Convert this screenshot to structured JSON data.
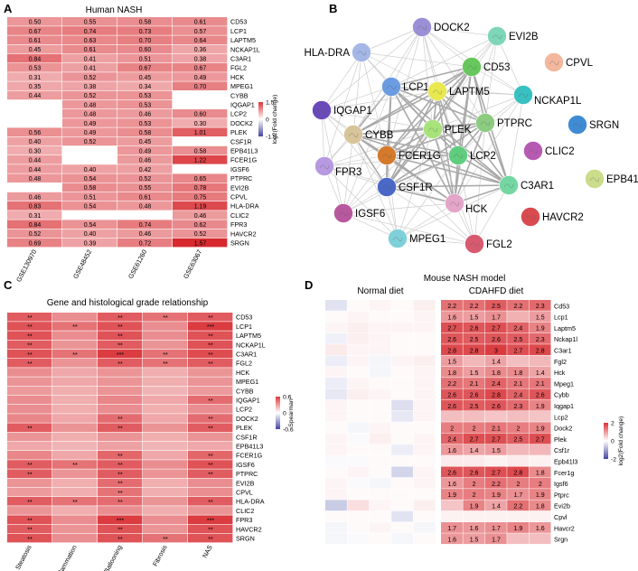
{
  "chart_data": [
    {
      "panel": "A",
      "type": "heatmap",
      "title": "Human NASH",
      "columns": [
        "GSE130970",
        "GSE48452",
        "GSE61260",
        "GSE63067"
      ],
      "rows": [
        "CD53",
        "LCP1",
        "LAPTM5",
        "NCKAP1L",
        "C3AR1",
        "FGL2",
        "HCK",
        "MPEG1",
        "CYBB",
        "IQGAP1",
        "LCP2",
        "DOCK2",
        "PLEK",
        "CSF1R",
        "EPB41L3",
        "FCER1G",
        "IGSF6",
        "PTPRC",
        "EVI2B",
        "CPVL",
        "HLA-DRA",
        "CLIC2",
        "FPR3",
        "HAVCR2",
        "SRGN"
      ],
      "values": [
        [
          0.5,
          0.55,
          0.58,
          0.61
        ],
        [
          0.67,
          0.74,
          0.73,
          0.57
        ],
        [
          0.61,
          0.63,
          0.7,
          0.64
        ],
        [
          0.45,
          0.61,
          0.6,
          0.36
        ],
        [
          0.84,
          0.41,
          0.51,
          0.38
        ],
        [
          0.53,
          0.41,
          0.67,
          0.67
        ],
        [
          0.31,
          0.52,
          0.45,
          0.49
        ],
        [
          0.35,
          0.38,
          0.34,
          0.7
        ],
        [
          0.44,
          0.52,
          0.53,
          null
        ],
        [
          null,
          0.48,
          0.53,
          null
        ],
        [
          null,
          0.48,
          0.46,
          0.6
        ],
        [
          null,
          0.49,
          0.53,
          0.3
        ],
        [
          0.56,
          0.49,
          0.58,
          1.01
        ],
        [
          0.4,
          0.52,
          0.45,
          null
        ],
        [
          0.3,
          null,
          0.49,
          0.58
        ],
        [
          0.44,
          null,
          0.46,
          1.22
        ],
        [
          0.44,
          0.4,
          0.42,
          null
        ],
        [
          0.48,
          0.54,
          0.52,
          0.65
        ],
        [
          null,
          0.58,
          0.55,
          0.78
        ],
        [
          0.46,
          0.51,
          0.61,
          0.75
        ],
        [
          0.83,
          0.54,
          0.48,
          1.19
        ],
        [
          0.31,
          null,
          null,
          0.46
        ],
        [
          0.84,
          0.54,
          0.74,
          0.62
        ],
        [
          0.52,
          0.4,
          0.46,
          0.52
        ],
        [
          0.69,
          0.39,
          0.72,
          1.57
        ]
      ],
      "colorbar": {
        "label": "log2(Fold change)",
        "ticks": [
          "1.5",
          "0",
          "-1.5"
        ],
        "range": [
          -1.5,
          1.5
        ]
      }
    },
    {
      "panel": "B",
      "type": "network",
      "nodes": [
        "DOCK2",
        "EVI2B",
        "HLA-DRA",
        "CD53",
        "CPVL",
        "LCP1",
        "LAPTM5",
        "NCKAP1L",
        "IQGAP1",
        "PTPRC",
        "SRGN",
        "PLEK",
        "CYBB",
        "CLIC2",
        "FCER1G",
        "LCP2",
        "C3AR1",
        "EPB41L3",
        "FPR3",
        "CSF1R",
        "HCK",
        "HAVCR2",
        "IGSF6",
        "MPEG1",
        "FGL2"
      ],
      "isolated": [
        "CPVL",
        "SRGN",
        "CLIC2",
        "EPB41L3",
        "HAVCR2"
      ]
    },
    {
      "panel": "C",
      "type": "heatmap",
      "title": "Gene and histological grade relationship",
      "columns": [
        "Steatosis",
        "Inflammation",
        "Ballooning",
        "Fibrosis",
        "NAS"
      ],
      "rows": [
        "CD53",
        "LCP1",
        "LAPTM5",
        "NCKAP1L",
        "C3AR1",
        "FGL2",
        "HCK",
        "MPEG1",
        "CYBB",
        "IQGAP1",
        "LCP2",
        "DOCK2",
        "PLEK",
        "CSF1R",
        "EPB41L3",
        "FCER1G",
        "IGSF6",
        "PTPRC",
        "EVI2B",
        "CPVL",
        "HLA-DRA",
        "CLIC2",
        "FPR3",
        "HAVCR2",
        "SRGN"
      ],
      "spearman": [
        [
          0.45,
          0.3,
          0.45,
          0.38,
          0.45
        ],
        [
          0.48,
          0.38,
          0.48,
          0.3,
          0.55
        ],
        [
          0.48,
          0.3,
          0.48,
          0.3,
          0.48
        ],
        [
          0.45,
          0.28,
          0.45,
          0.28,
          0.48
        ],
        [
          0.48,
          0.38,
          0.55,
          0.38,
          0.5
        ],
        [
          0.45,
          0.28,
          0.45,
          0.38,
          0.45
        ],
        [
          0.3,
          0.22,
          0.28,
          0.2,
          0.28
        ],
        [
          0.28,
          0.22,
          0.28,
          0.2,
          0.28
        ],
        [
          0.26,
          0.2,
          0.28,
          0.18,
          0.26
        ],
        [
          0.3,
          0.2,
          0.32,
          0.22,
          0.4
        ],
        [
          0.3,
          0.2,
          0.3,
          0.2,
          0.3
        ],
        [
          0.32,
          0.22,
          0.4,
          0.22,
          0.4
        ],
        [
          0.45,
          0.28,
          0.45,
          0.28,
          0.45
        ],
        [
          0.28,
          0.2,
          0.28,
          0.2,
          0.28
        ],
        [
          0.22,
          0.18,
          0.24,
          0.18,
          0.22
        ],
        [
          0.32,
          0.22,
          0.42,
          0.22,
          0.42
        ],
        [
          0.45,
          0.38,
          0.45,
          0.3,
          0.48
        ],
        [
          0.45,
          0.28,
          0.45,
          0.28,
          0.45
        ],
        [
          0.28,
          0.2,
          0.4,
          0.2,
          0.3
        ],
        [
          0.26,
          0.2,
          0.38,
          0.2,
          0.3
        ],
        [
          0.45,
          0.38,
          0.4,
          0.28,
          0.45
        ],
        [
          0.28,
          0.2,
          0.3,
          0.2,
          0.28
        ],
        [
          0.48,
          0.3,
          0.55,
          0.3,
          0.55
        ],
        [
          0.45,
          0.28,
          0.48,
          0.28,
          0.48
        ],
        [
          0.48,
          0.3,
          0.48,
          0.38,
          0.48
        ]
      ],
      "significance": [
        [
          "**",
          "",
          "**",
          "**",
          "**"
        ],
        [
          "**",
          "**",
          "**",
          "",
          "***"
        ],
        [
          "**",
          "",
          "**",
          "",
          "**"
        ],
        [
          "**",
          "",
          "**",
          "",
          "**"
        ],
        [
          "**",
          "**",
          "***",
          "**",
          "**"
        ],
        [
          "**",
          "",
          "**",
          "**",
          "**"
        ],
        [
          "",
          "",
          "",
          "",
          ""
        ],
        [
          "",
          "",
          "",
          "",
          ""
        ],
        [
          "",
          "",
          "",
          "",
          ""
        ],
        [
          "",
          "",
          "",
          "",
          "**"
        ],
        [
          "",
          "",
          "",
          "",
          ""
        ],
        [
          "",
          "",
          "**",
          "",
          "**"
        ],
        [
          "**",
          "",
          "**",
          "",
          "**"
        ],
        [
          "",
          "",
          "",
          "",
          ""
        ],
        [
          "",
          "",
          "",
          "",
          ""
        ],
        [
          "",
          "",
          "**",
          "",
          "**"
        ],
        [
          "**",
          "**",
          "**",
          "",
          "**"
        ],
        [
          "**",
          "",
          "**",
          "",
          "**"
        ],
        [
          "",
          "",
          "**",
          "",
          ""
        ],
        [
          "",
          "",
          "**",
          "",
          ""
        ],
        [
          "**",
          "**",
          "**",
          "",
          "**"
        ],
        [
          "",
          "",
          "",
          "",
          ""
        ],
        [
          "**",
          "",
          "***",
          "",
          "***"
        ],
        [
          "**",
          "",
          "**",
          "",
          "**"
        ],
        [
          "**",
          "",
          "**",
          "**",
          "**"
        ]
      ],
      "colorbar": {
        "label": "Spearman",
        "ticks": [
          "0.6",
          "0",
          "-0.6"
        ],
        "range": [
          -0.6,
          0.6
        ]
      }
    },
    {
      "panel": "D",
      "type": "heatmap",
      "title": "Mouse NASH model",
      "groups": [
        {
          "name": "Normal diet",
          "n": 5
        },
        {
          "name": "CDAHFD diet",
          "n": 5
        }
      ],
      "rows": [
        "Cd53",
        "Lcp1",
        "Laptm5",
        "Nckap1l",
        "C3ar1",
        "Fgl2",
        "Hck",
        "Mpeg1",
        "Cybb",
        "Iqgap1",
        "Lcp2",
        "Dock2",
        "Plek",
        "Csf1r",
        "Epb41l3",
        "Fcer1g",
        "Igsf6",
        "Ptprc",
        "Evi2b",
        "Cpvl",
        "Havcr2",
        "Srgn"
      ],
      "cdahfd_labels": [
        [
          "2.2",
          "2.2",
          "2.5",
          "2.2",
          "2.3"
        ],
        [
          "1.6",
          "1.5",
          "1.7",
          "",
          "1.5"
        ],
        [
          "2.7",
          "2.6",
          "2.7",
          "2.4",
          "1.9"
        ],
        [
          "2.6",
          "2.5",
          "2.6",
          "2.5",
          "2.3"
        ],
        [
          "2.8",
          "2.8",
          "3",
          "2.7",
          "2.8"
        ],
        [
          "1.5",
          "",
          "1.4",
          "",
          ""
        ],
        [
          "1.8",
          "1.5",
          "1.8",
          "1.8",
          "1.4"
        ],
        [
          "2.2",
          "2.1",
          "2.4",
          "2.1",
          "2.1"
        ],
        [
          "2.6",
          "2.6",
          "2.8",
          "2.4",
          "2.6"
        ],
        [
          "2.6",
          "2.5",
          "2.6",
          "2.3",
          "1.9"
        ],
        [
          "",
          "",
          "",
          "",
          ""
        ],
        [
          "2",
          "2",
          "2.1",
          "2",
          "1.9"
        ],
        [
          "2.4",
          "2.7",
          "2.7",
          "2.5",
          "2.7"
        ],
        [
          "1.6",
          "1.4",
          "1.5",
          "",
          ""
        ],
        [
          "",
          "",
          "",
          "",
          ""
        ],
        [
          "2.6",
          "2.6",
          "2.7",
          "2.8",
          "1.8"
        ],
        [
          "1.6",
          "2",
          "2.2",
          "2",
          "2"
        ],
        [
          "1.9",
          "2",
          "1.9",
          "1.7",
          "1.9"
        ],
        [
          "",
          "1.9",
          "1.4",
          "2.2",
          "1.8"
        ],
        [
          "",
          "",
          "",
          "",
          ""
        ],
        [
          "1.7",
          "1.6",
          "1.7",
          "1.9",
          "1.6"
        ],
        [
          "1.6",
          "1.5",
          "1.7",
          "",
          ""
        ]
      ],
      "cdahfd_values": [
        [
          2.2,
          2.2,
          2.5,
          2.2,
          2.3
        ],
        [
          1.6,
          1.5,
          1.7,
          1.2,
          1.5
        ],
        [
          2.7,
          2.6,
          2.7,
          2.4,
          1.9
        ],
        [
          2.6,
          2.5,
          2.6,
          2.5,
          2.3
        ],
        [
          2.8,
          2.8,
          3.0,
          2.7,
          2.8
        ],
        [
          1.5,
          1.1,
          1.4,
          1.0,
          1.1
        ],
        [
          1.8,
          1.5,
          1.8,
          1.8,
          1.4
        ],
        [
          2.2,
          2.1,
          2.4,
          2.1,
          2.1
        ],
        [
          2.6,
          2.6,
          2.8,
          2.4,
          2.6
        ],
        [
          2.6,
          2.5,
          2.6,
          2.3,
          1.9
        ],
        [
          1.0,
          1.0,
          0.9,
          1.0,
          0.9
        ],
        [
          2.0,
          2.0,
          2.1,
          2.0,
          1.9
        ],
        [
          2.4,
          2.7,
          2.7,
          2.5,
          2.7
        ],
        [
          1.6,
          1.4,
          1.5,
          1.1,
          1.1
        ],
        [
          0.3,
          0.3,
          0.2,
          0.3,
          0.2
        ],
        [
          2.6,
          2.6,
          2.7,
          2.8,
          1.8
        ],
        [
          1.6,
          2.0,
          2.2,
          2.0,
          2.0
        ],
        [
          1.9,
          2.0,
          1.9,
          1.7,
          1.9
        ],
        [
          0.9,
          1.9,
          1.4,
          2.2,
          1.8
        ],
        [
          0.2,
          0.2,
          0.2,
          0.2,
          0.2
        ],
        [
          1.7,
          1.6,
          1.7,
          1.9,
          1.6
        ],
        [
          1.6,
          1.5,
          1.7,
          1.0,
          1.0
        ]
      ],
      "normal_values": [
        [
          -0.3,
          0.05,
          0.1,
          0.05,
          0.15
        ],
        [
          0.05,
          0.1,
          0.05,
          0.05,
          0.1
        ],
        [
          0.1,
          0.15,
          0.1,
          0.1,
          0.1
        ],
        [
          -0.15,
          0.15,
          0.1,
          0.05,
          0.05
        ],
        [
          0.2,
          0.1,
          0.1,
          0.05,
          0.05
        ],
        [
          -0.2,
          0.1,
          -0.1,
          0.1,
          0.15
        ],
        [
          0.1,
          0.05,
          -0.1,
          0.05,
          0.1
        ],
        [
          -0.2,
          0.1,
          0.05,
          0.05,
          0.1
        ],
        [
          -0.25,
          0.15,
          0.1,
          0.05,
          0.1
        ],
        [
          0.1,
          0.05,
          0.05,
          -0.35,
          0.1
        ],
        [
          0.1,
          0.05,
          0.05,
          -0.25,
          0.1
        ],
        [
          0.05,
          -0.1,
          0.1,
          0.05,
          0.05
        ],
        [
          0.1,
          -0.05,
          0.15,
          0.05,
          0.1
        ],
        [
          0.1,
          0.05,
          0.05,
          -0.2,
          0.1
        ],
        [
          -0.05,
          -0.05,
          0.05,
          0.05,
          0.05
        ],
        [
          0.05,
          0.1,
          0.05,
          -0.45,
          0.1
        ],
        [
          0.1,
          -0.05,
          -0.1,
          0.05,
          0.1
        ],
        [
          0.1,
          0.05,
          0.05,
          0.05,
          0.05
        ],
        [
          -0.55,
          0.3,
          0.1,
          0.05,
          0.15
        ],
        [
          0.05,
          0.05,
          0.05,
          -0.3,
          0.05
        ],
        [
          -0.1,
          0.05,
          0.1,
          0.05,
          -0.1
        ],
        [
          -0.1,
          -0.05,
          0.05,
          -0.1,
          0.05
        ]
      ],
      "colorbar": {
        "label": "log2(Fold change)",
        "ticks": [
          "2",
          "0",
          "-2"
        ],
        "range": [
          -2,
          2
        ]
      }
    }
  ]
}
